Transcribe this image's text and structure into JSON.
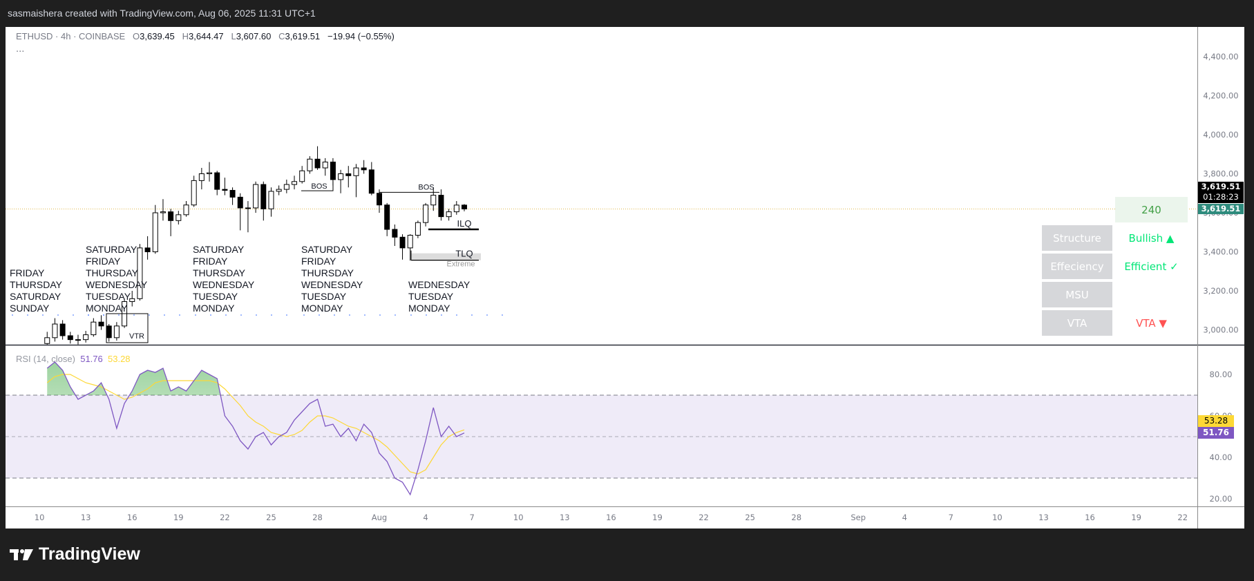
{
  "header": {
    "text": "sasmaishera created with TradingView.com, Aug 06, 2025 11:31 UTC+1"
  },
  "legend": {
    "symbol": "ETHUSD · 4h · COINBASE",
    "o_label": "O",
    "o": "3,639.45",
    "h_label": "H",
    "h": "3,644.47",
    "l_label": "L",
    "l": "3,607.60",
    "c_label": "C",
    "c": "3,619.51",
    "change": "−19.94 (−0.55%)",
    "more": "..."
  },
  "price_axis": {
    "last_price": "3,619.51",
    "countdown": "01:28:23",
    "last_price_2": "3,619.51"
  },
  "rsi_legend": {
    "name": "RSI (14, close)",
    "value": "51.76",
    "ma_value": "53.28"
  },
  "rsi_axis": {
    "rsi_label": "51.76",
    "ma_label": "53.28"
  },
  "annotations": {
    "bos_1": "BOS",
    "bos_2": "BOS",
    "ilq": "ILQ",
    "tlq": "TLQ",
    "extreme": "Extreme",
    "vtr": "VTR"
  },
  "session_labels": [
    {
      "words": [
        "SUNDAY",
        "SATURDAY",
        "THURSDAY",
        "FRIDAY"
      ]
    },
    {
      "words": [
        "MONDAY",
        "TUESDAY",
        "WEDNESDAY",
        "THURSDAY",
        "FRIDAY",
        "SATURDAY"
      ]
    },
    {
      "words": [
        "MONDAY",
        "TUESDAY",
        "WEDNESDAY",
        "THURSDAY",
        "FRIDAY",
        "SATURDAY"
      ]
    },
    {
      "words": [
        "MONDAY",
        "TUESDAY",
        "WEDNESDAY",
        "THURSDAY",
        "FRIDAY",
        "SATURDAY"
      ]
    },
    {
      "words": [
        "MONDAY",
        "TUESDAY",
        "WEDNESDAY"
      ]
    }
  ],
  "table": {
    "timeframe": "240",
    "rows": [
      {
        "label": "Structure",
        "value": "Bullish ▲",
        "color": "#00e676"
      },
      {
        "label": "Effeciency",
        "value": "Efficient ✓",
        "color": "#00e676"
      },
      {
        "label": "MSU",
        "value": "",
        "color": "#00e676"
      },
      {
        "label": "VTA",
        "value": "VTA ▼",
        "color": "#ff5252"
      }
    ]
  },
  "footer": {
    "logo_text": "TradingView"
  },
  "colors": {
    "rsi": "#7e57c2",
    "rsi_ma": "#fdd835",
    "last_price": "#2e8b7d",
    "bull": "#ffffff",
    "bear": "#000000"
  },
  "chart_data": [
    {
      "type": "candlestick",
      "symbol": "ETHUSD",
      "ylim": [
        2924,
        4570
      ],
      "yticks": [
        "3,000.00",
        "3,200.00",
        "3,400.00",
        "3,600.00",
        "3,800.00",
        "4,000.00",
        "4,200.00",
        "4,400.00"
      ],
      "ytick_values": [
        3000,
        3200,
        3400,
        3600,
        3800,
        4000,
        4200,
        4400
      ],
      "xticks": [
        "10",
        "13",
        "16",
        "19",
        "22",
        "25",
        "28",
        "Aug",
        "4",
        "7",
        "10",
        "13",
        "16",
        "19",
        "22",
        "25",
        "28",
        "Sep",
        "4",
        "7",
        "10",
        "13",
        "16",
        "19",
        "22"
      ],
      "xtick_dates": [
        "Jul 10",
        "Jul 13",
        "Jul 16",
        "Jul 19",
        "Jul 22",
        "Jul 25",
        "Jul 28",
        "Aug 1",
        "Aug 4",
        "Aug 7",
        "Aug 10",
        "Aug 13",
        "Aug 16",
        "Aug 19",
        "Aug 22",
        "Aug 25",
        "Aug 28",
        "Sep 1",
        "Sep 4",
        "Sep 7",
        "Sep 10",
        "Sep 13",
        "Sep 16",
        "Sep 19",
        "Sep 22"
      ],
      "last_price": 3619.51,
      "levels": {
        "bos_1": 3713,
        "bos_2": 3705,
        "ilq": 3515,
        "tlq": 3357
      },
      "candles": [
        [
          "Jul 10 12:00",
          2930,
          2990,
          2925,
          2960
        ],
        [
          "Jul 11 00:00",
          2960,
          3060,
          2940,
          3030
        ],
        [
          "Jul 11 12:00",
          3030,
          3050,
          2950,
          2970
        ],
        [
          "Jul 12 00:00",
          2970,
          2990,
          2930,
          2950
        ],
        [
          "Jul 12 12:00",
          2950,
          2975,
          2925,
          2950
        ],
        [
          "Jul 13 00:00",
          2950,
          2995,
          2935,
          2975
        ],
        [
          "Jul 13 12:00",
          2975,
          3060,
          2965,
          3040
        ],
        [
          "Jul 14 00:00",
          3040,
          3075,
          3000,
          3020
        ],
        [
          "Jul 14 12:00",
          3020,
          3030,
          2940,
          2960
        ],
        [
          "Jul 15 00:00",
          2960,
          3040,
          2945,
          3020
        ],
        [
          "Jul 15 12:00",
          3020,
          3160,
          3010,
          3145
        ],
        [
          "Jul 16 00:00",
          3145,
          3200,
          3120,
          3160
        ],
        [
          "Jul 16 12:00",
          3160,
          3440,
          3150,
          3420
        ],
        [
          "Jul 17 00:00",
          3420,
          3480,
          3360,
          3400
        ],
        [
          "Jul 17 12:00",
          3400,
          3640,
          3390,
          3600
        ],
        [
          "Jul 18 00:00",
          3600,
          3670,
          3560,
          3605
        ],
        [
          "Jul 18 12:00",
          3605,
          3620,
          3480,
          3560
        ],
        [
          "Jul 19 00:00",
          3560,
          3610,
          3540,
          3590
        ],
        [
          "Jul 19 12:00",
          3590,
          3660,
          3580,
          3640
        ],
        [
          "Jul 20 00:00",
          3640,
          3790,
          3630,
          3765
        ],
        [
          "Jul 20 12:00",
          3765,
          3830,
          3720,
          3800
        ],
        [
          "Jul 21 00:00",
          3800,
          3860,
          3760,
          3805
        ],
        [
          "Jul 21 12:00",
          3805,
          3815,
          3690,
          3720
        ],
        [
          "Jul 22 00:00",
          3720,
          3780,
          3690,
          3715
        ],
        [
          "Jul 22 12:00",
          3715,
          3730,
          3640,
          3680
        ],
        [
          "Jul 23 00:00",
          3680,
          3700,
          3510,
          3625
        ],
        [
          "Jul 23 12:00",
          3625,
          3660,
          3500,
          3625
        ],
        [
          "Jul 24 00:00",
          3625,
          3760,
          3600,
          3745
        ],
        [
          "Jul 24 12:00",
          3745,
          3760,
          3560,
          3620
        ],
        [
          "Jul 25 00:00",
          3620,
          3730,
          3580,
          3710
        ],
        [
          "Jul 25 12:00",
          3710,
          3740,
          3690,
          3720
        ],
        [
          "Jul 26 00:00",
          3720,
          3770,
          3700,
          3745
        ],
        [
          "Jul 26 12:00",
          3745,
          3790,
          3720,
          3760
        ],
        [
          "Jul 27 00:00",
          3760,
          3840,
          3750,
          3815
        ],
        [
          "Jul 27 12:00",
          3815,
          3890,
          3800,
          3875
        ],
        [
          "Jul 28 00:00",
          3875,
          3941,
          3820,
          3830
        ],
        [
          "Jul 28 12:00",
          3830,
          3880,
          3790,
          3860
        ],
        [
          "Jul 29 00:00",
          3860,
          3880,
          3740,
          3770
        ],
        [
          "Jul 29 12:00",
          3770,
          3820,
          3700,
          3800
        ],
        [
          "Jul 30 00:00",
          3800,
          3840,
          3730,
          3790
        ],
        [
          "Jul 30 12:00",
          3790,
          3850,
          3680,
          3830
        ],
        [
          "Jul 31 00:00",
          3830,
          3870,
          3800,
          3820
        ],
        [
          "Jul 31 12:00",
          3820,
          3860,
          3690,
          3700
        ],
        [
          "Aug 1 00:00",
          3700,
          3720,
          3600,
          3640
        ],
        [
          "Aug 1 12:00",
          3640,
          3650,
          3480,
          3515
        ],
        [
          "Aug 2 00:00",
          3515,
          3540,
          3430,
          3475
        ],
        [
          "Aug 2 12:00",
          3475,
          3490,
          3360,
          3420
        ],
        [
          "Aug 3 00:00",
          3420,
          3490,
          3355,
          3485
        ],
        [
          "Aug 3 12:00",
          3485,
          3560,
          3470,
          3550
        ],
        [
          "Aug 4 00:00",
          3550,
          3650,
          3530,
          3640
        ],
        [
          "Aug 4 12:00",
          3640,
          3730,
          3610,
          3690
        ],
        [
          "Aug 5 00:00",
          3690,
          3720,
          3560,
          3580
        ],
        [
          "Aug 5 12:00",
          3580,
          3620,
          3560,
          3605
        ],
        [
          "Aug 6 00:00",
          3605,
          3660,
          3590,
          3639.45
        ],
        [
          "Aug 6 12:00",
          3639.45,
          3644.47,
          3607.6,
          3619.51
        ]
      ]
    },
    {
      "type": "line",
      "title": "RSI (14, close)",
      "ylim": [
        16,
        94
      ],
      "yticks": [
        "20.00",
        "40.00",
        "60.00",
        "80.00"
      ],
      "ytick_values": [
        20,
        40,
        60,
        80
      ],
      "bands": {
        "upper": 70,
        "middle": 50,
        "lower": 30
      },
      "series": [
        {
          "name": "RSI",
          "values": [
            83,
            86,
            82,
            74,
            68,
            70,
            72,
            76,
            68,
            54,
            66,
            72,
            80,
            82,
            81,
            83,
            72,
            74,
            72,
            77,
            82,
            80,
            78,
            60,
            55,
            48,
            44,
            50,
            52,
            46,
            50,
            52,
            58,
            62,
            66,
            68,
            55,
            56,
            50,
            54,
            48,
            56,
            52,
            42,
            38,
            30,
            28,
            22,
            34,
            48,
            64,
            50,
            55,
            50,
            51.76
          ]
        },
        {
          "name": "RSI-based MA",
          "values": [
            76,
            79,
            80,
            80,
            78,
            76,
            75,
            74,
            72,
            70,
            68,
            69,
            71,
            73,
            76,
            77,
            77,
            77,
            77,
            77,
            77,
            77,
            76,
            73,
            69,
            65,
            60,
            57,
            55,
            52,
            51,
            50,
            51,
            53,
            57,
            60,
            60,
            59,
            57,
            55,
            54,
            52,
            50,
            48,
            45,
            41,
            37,
            33,
            32,
            34,
            40,
            46,
            50,
            52,
            53.28
          ]
        }
      ]
    }
  ]
}
